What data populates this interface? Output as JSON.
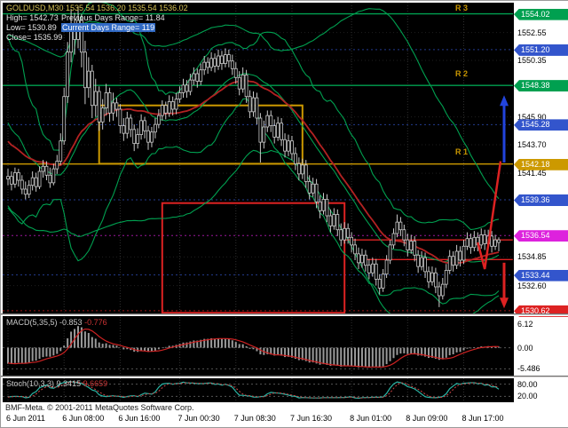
{
  "header": {
    "symbol_line": "GOLDUSD,M30 1535.54 1536.20 1535.54 1536.02",
    "high": "High= 1542.73",
    "prev_range": "Previous Days Range= 11.84",
    "low": "Low= 1530.89",
    "curr_range": "Current Days Range= 119",
    "close": "Close= 1535.99",
    "symbol_color": "#d8c455",
    "text_color": "#e6e6e6",
    "selection_bg": "#316ac5"
  },
  "annotations": {
    "r3": "R 3",
    "r2": "R 2",
    "r1": "R 1",
    "color": "#c89600"
  },
  "footer": {
    "copyright": "BMF-Meta. © 2001-2011 MetaQuotes Software Corp."
  },
  "time_axis": {
    "labels": [
      "6 Jun 2011",
      "6 Jun 08:00",
      "6 Jun 16:00",
      "7 Jun 00:30",
      "7 Jun 08:30",
      "7 Jun 16:30",
      "8 Jun 01:00",
      "8 Jun 09:00",
      "8 Jun 17:00"
    ]
  },
  "price_axis": {
    "ticks": [
      1552.55,
      1550.35,
      1545.9,
      1543.7,
      1541.45,
      1534.85,
      1532.6
    ],
    "levels": [
      {
        "value": 1554.02,
        "color": "#00a050",
        "style": "solid"
      },
      {
        "value": 1551.2,
        "color": "#3355cc",
        "style": "dot"
      },
      {
        "value": 1548.38,
        "color": "#00a050",
        "style": "solid"
      },
      {
        "value": 1545.28,
        "color": "#3355cc",
        "style": "dot"
      },
      {
        "value": 1542.18,
        "color": "#cc9900",
        "style": "solid"
      },
      {
        "value": 1539.36,
        "color": "#3355cc",
        "style": "dot"
      },
      {
        "value": 1536.54,
        "color": "#dd22dd",
        "style": "dot"
      },
      {
        "value": 1533.44,
        "color": "#3355cc",
        "style": "dot"
      },
      {
        "value": 1530.62,
        "color": "#dd2222",
        "style": "dot"
      }
    ]
  },
  "colors": {
    "chart_bg": "#000000",
    "frame_bg": "#ffffff",
    "grid": "#2e2e2e",
    "candle": "#c8c8c8",
    "axis_text": "#000000"
  },
  "chart_data": {
    "type": "candlestick",
    "title": "GOLDUSD,M30",
    "timeframe": "M30",
    "ylim": [
      1530.4,
      1554.9
    ],
    "x_label_indices": [
      0,
      16,
      32,
      49,
      65,
      81,
      98,
      114,
      130
    ],
    "prior_closes": [
      1549.0,
      1551.0,
      1548.0,
      1546.0,
      1550.0,
      1552.0,
      1549.5,
      1547.0,
      1545.0,
      1548.0,
      1546.0,
      1544.0,
      1543.0,
      1545.0,
      1542.5,
      1544.0,
      1541.5,
      1543.0,
      1540.5,
      1541.5
    ],
    "candles_ohlc": [
      [
        1541.0,
        1541.8,
        1540.5,
        1541.2
      ],
      [
        1541.2,
        1541.6,
        1540.1,
        1540.6
      ],
      [
        1540.6,
        1541.9,
        1540.3,
        1541.5
      ],
      [
        1541.5,
        1541.8,
        1540.4,
        1540.9
      ],
      [
        1540.9,
        1541.3,
        1539.8,
        1540.2
      ],
      [
        1540.2,
        1540.8,
        1539.4,
        1539.8
      ],
      [
        1539.8,
        1540.9,
        1539.5,
        1540.5
      ],
      [
        1540.5,
        1541.6,
        1540.1,
        1541.1
      ],
      [
        1541.1,
        1541.5,
        1540.0,
        1540.4
      ],
      [
        1540.4,
        1542.0,
        1540.2,
        1541.6
      ],
      [
        1541.6,
        1542.5,
        1541.1,
        1542.0
      ],
      [
        1542.0,
        1542.4,
        1540.9,
        1541.3
      ],
      [
        1541.3,
        1541.9,
        1540.3,
        1540.7
      ],
      [
        1540.7,
        1542.2,
        1540.5,
        1541.8
      ],
      [
        1541.8,
        1542.9,
        1541.4,
        1542.4
      ],
      [
        1542.4,
        1544.6,
        1542.1,
        1544.0
      ],
      [
        1544.0,
        1548.2,
        1543.7,
        1547.5
      ],
      [
        1547.5,
        1551.8,
        1547.0,
        1551.0
      ],
      [
        1551.0,
        1554.4,
        1550.2,
        1553.2
      ],
      [
        1553.2,
        1554.1,
        1550.8,
        1552.0
      ],
      [
        1552.0,
        1554.6,
        1551.3,
        1553.5
      ],
      [
        1553.5,
        1554.0,
        1549.8,
        1551.0
      ],
      [
        1551.0,
        1551.9,
        1546.9,
        1548.2
      ],
      [
        1548.2,
        1550.6,
        1547.4,
        1549.5
      ],
      [
        1549.5,
        1550.0,
        1545.8,
        1546.8
      ],
      [
        1546.8,
        1548.9,
        1545.9,
        1547.9
      ],
      [
        1547.9,
        1548.3,
        1544.8,
        1545.5
      ],
      [
        1545.5,
        1547.3,
        1544.9,
        1546.6
      ],
      [
        1546.6,
        1548.5,
        1546.0,
        1547.8
      ],
      [
        1547.8,
        1548.2,
        1545.5,
        1546.2
      ],
      [
        1546.2,
        1547.8,
        1545.6,
        1547.0
      ],
      [
        1547.0,
        1547.4,
        1545.9,
        1546.5
      ],
      [
        1546.5,
        1546.9,
        1544.6,
        1545.2
      ],
      [
        1545.2,
        1545.8,
        1544.0,
        1544.6
      ],
      [
        1544.6,
        1546.3,
        1544.2,
        1545.8
      ],
      [
        1545.8,
        1546.1,
        1544.3,
        1544.9
      ],
      [
        1544.9,
        1545.3,
        1543.2,
        1543.8
      ],
      [
        1543.8,
        1545.0,
        1543.4,
        1544.5
      ],
      [
        1544.5,
        1546.1,
        1544.1,
        1545.6
      ],
      [
        1545.6,
        1545.9,
        1544.2,
        1544.8
      ],
      [
        1544.8,
        1545.2,
        1543.3,
        1543.9
      ],
      [
        1543.9,
        1545.1,
        1543.5,
        1544.7
      ],
      [
        1544.7,
        1545.8,
        1544.2,
        1545.3
      ],
      [
        1545.3,
        1546.5,
        1545.0,
        1546.0
      ],
      [
        1546.0,
        1547.2,
        1545.6,
        1546.8
      ],
      [
        1546.8,
        1547.1,
        1545.7,
        1546.2
      ],
      [
        1546.2,
        1547.6,
        1545.9,
        1547.1
      ],
      [
        1547.1,
        1547.5,
        1546.0,
        1546.5
      ],
      [
        1546.5,
        1547.8,
        1546.1,
        1547.3
      ],
      [
        1547.3,
        1548.3,
        1547.0,
        1547.8
      ],
      [
        1547.8,
        1548.9,
        1547.4,
        1548.4
      ],
      [
        1548.4,
        1548.8,
        1547.4,
        1547.9
      ],
      [
        1547.9,
        1549.3,
        1547.6,
        1548.8
      ],
      [
        1548.8,
        1549.8,
        1548.4,
        1549.3
      ],
      [
        1549.3,
        1549.7,
        1548.2,
        1548.7
      ],
      [
        1548.7,
        1550.1,
        1548.4,
        1549.6
      ],
      [
        1549.6,
        1550.7,
        1549.2,
        1550.2
      ],
      [
        1550.2,
        1550.6,
        1549.3,
        1549.8
      ],
      [
        1549.8,
        1551.0,
        1549.5,
        1550.5
      ],
      [
        1550.5,
        1550.9,
        1549.4,
        1549.9
      ],
      [
        1549.9,
        1551.2,
        1549.6,
        1550.7
      ],
      [
        1550.7,
        1551.1,
        1549.6,
        1550.1
      ],
      [
        1550.1,
        1551.3,
        1549.8,
        1550.8
      ],
      [
        1550.8,
        1551.2,
        1549.8,
        1550.3
      ],
      [
        1550.3,
        1550.8,
        1549.2,
        1549.7
      ],
      [
        1549.7,
        1550.2,
        1548.5,
        1549.0
      ],
      [
        1549.0,
        1549.5,
        1547.6,
        1548.1
      ],
      [
        1548.1,
        1549.8,
        1547.8,
        1549.2
      ],
      [
        1549.2,
        1549.6,
        1547.0,
        1547.5
      ],
      [
        1547.5,
        1548.0,
        1545.8,
        1546.3
      ],
      [
        1546.3,
        1547.9,
        1545.9,
        1547.4
      ],
      [
        1547.4,
        1547.8,
        1545.3,
        1545.8
      ],
      [
        1545.8,
        1546.2,
        1542.3,
        1543.9
      ],
      [
        1543.9,
        1545.6,
        1543.4,
        1545.1
      ],
      [
        1545.1,
        1546.4,
        1544.7,
        1546.0
      ],
      [
        1546.0,
        1546.4,
        1544.7,
        1545.2
      ],
      [
        1545.2,
        1545.7,
        1543.8,
        1544.3
      ],
      [
        1544.3,
        1545.9,
        1544.0,
        1545.4
      ],
      [
        1545.4,
        1545.8,
        1543.6,
        1544.1
      ],
      [
        1544.1,
        1544.6,
        1542.7,
        1543.2
      ],
      [
        1543.2,
        1544.5,
        1542.8,
        1544.0
      ],
      [
        1544.0,
        1544.4,
        1542.5,
        1543.0
      ],
      [
        1543.0,
        1543.5,
        1541.7,
        1542.2
      ],
      [
        1542.2,
        1542.7,
        1540.9,
        1541.4
      ],
      [
        1541.4,
        1542.6,
        1541.0,
        1542.1
      ],
      [
        1542.1,
        1542.5,
        1540.3,
        1540.8
      ],
      [
        1540.8,
        1541.3,
        1539.4,
        1539.9
      ],
      [
        1539.9,
        1541.1,
        1539.6,
        1540.6
      ],
      [
        1540.6,
        1541.0,
        1538.7,
        1539.2
      ],
      [
        1539.2,
        1539.7,
        1537.9,
        1538.5
      ],
      [
        1538.5,
        1539.9,
        1538.2,
        1539.4
      ],
      [
        1539.4,
        1539.8,
        1537.6,
        1538.1
      ],
      [
        1538.1,
        1538.6,
        1536.8,
        1537.3
      ],
      [
        1537.3,
        1538.7,
        1537.0,
        1538.2
      ],
      [
        1538.2,
        1538.6,
        1536.5,
        1537.0
      ],
      [
        1537.0,
        1537.5,
        1535.7,
        1536.2
      ],
      [
        1536.2,
        1537.6,
        1535.9,
        1537.1
      ],
      [
        1537.1,
        1537.5,
        1535.9,
        1536.4
      ],
      [
        1536.4,
        1536.8,
        1535.2,
        1535.8
      ],
      [
        1535.8,
        1536.3,
        1534.6,
        1535.1
      ],
      [
        1535.1,
        1535.6,
        1533.9,
        1534.4
      ],
      [
        1534.4,
        1535.5,
        1534.0,
        1535.0
      ],
      [
        1535.0,
        1535.4,
        1533.7,
        1534.2
      ],
      [
        1534.2,
        1534.7,
        1533.1,
        1533.6
      ],
      [
        1533.6,
        1534.8,
        1533.3,
        1534.3
      ],
      [
        1534.3,
        1534.7,
        1532.6,
        1533.1
      ],
      [
        1533.1,
        1533.5,
        1531.9,
        1532.4
      ],
      [
        1532.4,
        1533.9,
        1532.1,
        1533.5
      ],
      [
        1533.5,
        1535.0,
        1533.2,
        1534.6
      ],
      [
        1534.6,
        1536.2,
        1534.3,
        1535.8
      ],
      [
        1535.8,
        1537.1,
        1535.5,
        1536.7
      ],
      [
        1536.7,
        1538.2,
        1536.4,
        1537.6
      ],
      [
        1537.6,
        1538.0,
        1536.5,
        1537.0
      ],
      [
        1537.0,
        1537.4,
        1535.7,
        1536.2
      ],
      [
        1536.2,
        1536.7,
        1534.9,
        1535.4
      ],
      [
        1535.4,
        1536.6,
        1535.1,
        1536.1
      ],
      [
        1536.1,
        1536.5,
        1534.5,
        1535.0
      ],
      [
        1535.0,
        1535.4,
        1533.6,
        1534.1
      ],
      [
        1534.1,
        1535.3,
        1533.8,
        1534.8
      ],
      [
        1534.8,
        1535.2,
        1533.2,
        1533.7
      ],
      [
        1533.7,
        1534.1,
        1532.4,
        1532.9
      ],
      [
        1532.9,
        1534.1,
        1532.6,
        1533.6
      ],
      [
        1533.6,
        1534.0,
        1532.0,
        1532.5
      ],
      [
        1532.5,
        1532.9,
        1530.9,
        1531.8
      ],
      [
        1531.8,
        1533.2,
        1531.5,
        1532.7
      ],
      [
        1532.7,
        1534.3,
        1532.4,
        1533.8
      ],
      [
        1533.8,
        1535.4,
        1533.5,
        1534.9
      ],
      [
        1534.9,
        1535.3,
        1533.7,
        1534.2
      ],
      [
        1534.2,
        1535.8,
        1533.9,
        1535.3
      ],
      [
        1535.3,
        1535.7,
        1534.1,
        1534.6
      ],
      [
        1534.6,
        1536.2,
        1534.3,
        1535.7
      ],
      [
        1535.7,
        1536.8,
        1535.4,
        1536.3
      ],
      [
        1536.3,
        1536.7,
        1535.1,
        1535.6
      ],
      [
        1535.6,
        1536.9,
        1535.3,
        1536.4
      ],
      [
        1536.4,
        1536.8,
        1535.3,
        1535.8
      ],
      [
        1535.8,
        1537.1,
        1535.5,
        1536.6
      ],
      [
        1536.6,
        1537.0,
        1535.4,
        1535.9
      ],
      [
        1535.9,
        1537.0,
        1535.6,
        1536.5
      ],
      [
        1536.5,
        1536.9,
        1535.2,
        1535.7
      ],
      [
        1535.7,
        1536.6,
        1535.4,
        1536.2
      ],
      [
        1536.2,
        1536.4,
        1535.3,
        1536.0
      ]
    ],
    "overlays": {
      "boxes": [
        {
          "t0": 26,
          "t1": 84,
          "price_top": 1546.8,
          "price_bottom": 1542.2,
          "color": "#cc9900"
        },
        {
          "t0": 44,
          "t1": 96,
          "price_top": 1539.1,
          "price_bottom": 1530.45,
          "color": "#dd2222"
        }
      ],
      "segments": [
        {
          "price": 1536.2,
          "t0": 96,
          "t1": 144,
          "color": "#dd2222"
        },
        {
          "price": 1534.65,
          "t0": 102,
          "t1": 144,
          "color": "#dd2222"
        }
      ],
      "zigzag": {
        "color": "#dd2222",
        "points": [
          [
            134,
            1536.0
          ],
          [
            136,
            1533.9
          ],
          [
            140.5,
            1542.4
          ]
        ]
      },
      "arrows": [
        {
          "dir": "up",
          "color": "#2244dd",
          "price_from": 1542.3,
          "price_to": 1547.6
        },
        {
          "dir": "down",
          "color": "#dd2222",
          "price_from": 1534.4,
          "price_to": 1530.8
        }
      ]
    },
    "indicators": {
      "bollinger": {
        "period": 20,
        "deviation": 2,
        "color": "#00a050"
      },
      "bollinger2": {
        "period": 55,
        "deviation": 2,
        "color": "#00a050"
      },
      "ma": {
        "period": 34,
        "method": "lwma",
        "color": "#b22222"
      },
      "macd": {
        "name": "MACD(5,35,5)",
        "value1": "-0.853",
        "value2": "-0.776",
        "axis_labels": [
          {
            "v": 6.12,
            "t": "6.12"
          },
          {
            "v": 0,
            "t": "0.00"
          },
          {
            "v": -5.486,
            "t": "-5.486"
          }
        ],
        "range": [
          -6.8,
          8.0
        ],
        "hist_color": "#9a9a9a",
        "signal_color": "#cc2222"
      },
      "stoch": {
        "name": "Stoch(10,3,3)",
        "value1": "9.3415",
        "value2": "9.6659",
        "level_labels": [
          {
            "v": 80,
            "t": "80.00"
          },
          {
            "v": 20,
            "t": "20.00"
          }
        ],
        "range": [
          -5,
          105
        ],
        "main_color": "#2ab5a5",
        "signal_color": "#cc4444"
      }
    }
  }
}
